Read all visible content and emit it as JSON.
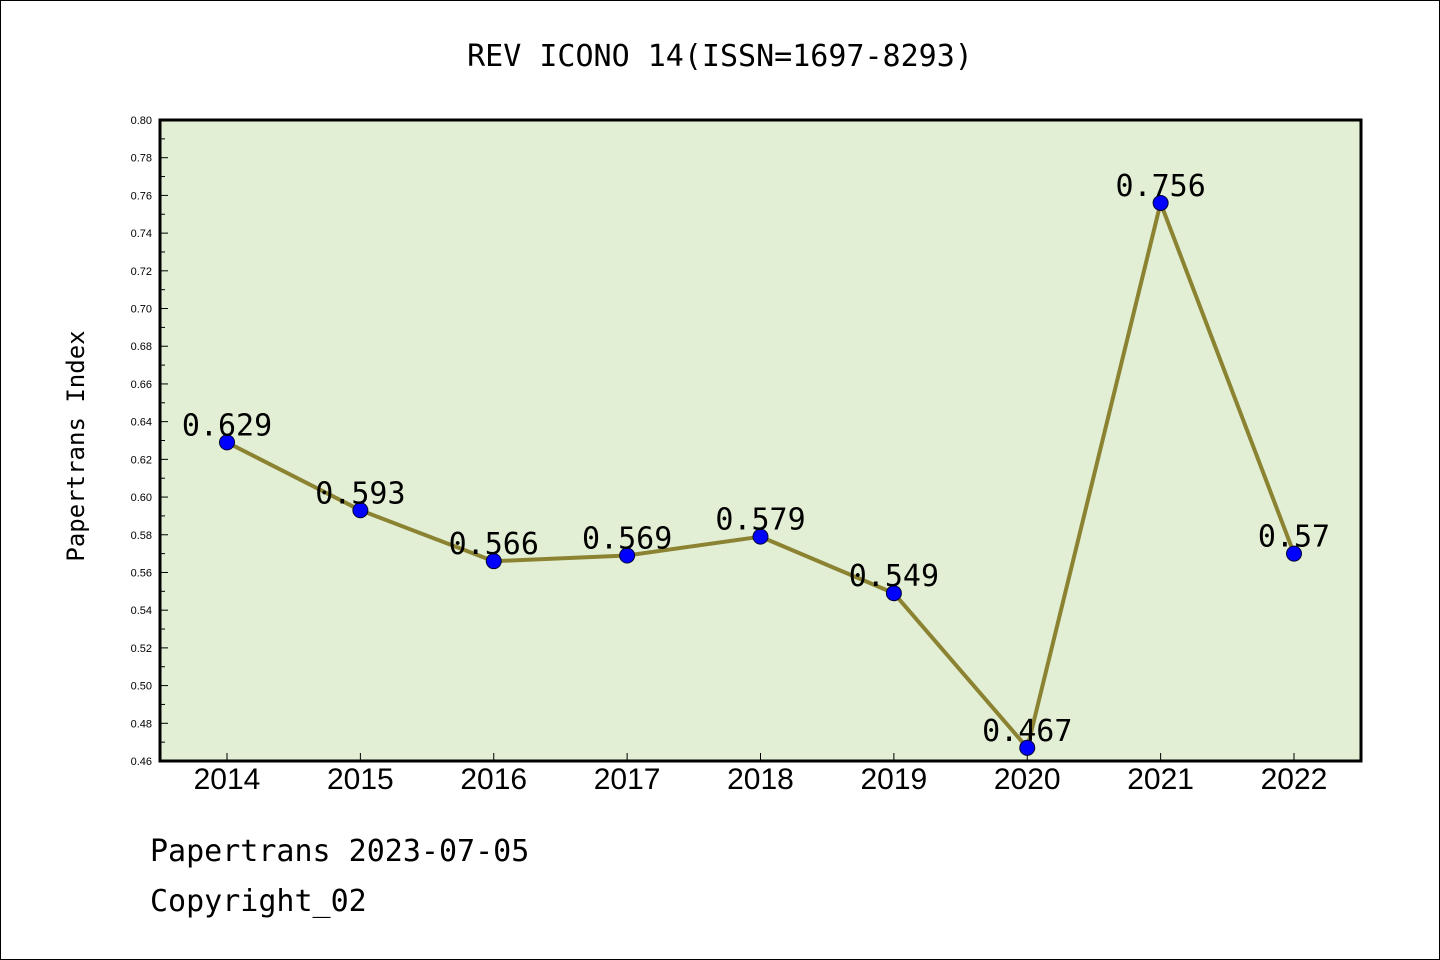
{
  "footer": {
    "date_line": "Papertrans 2023-07-05",
    "copyright": "Copyright_02"
  },
  "chart_data": {
    "type": "line",
    "title": "REV ICONO 14(ISSN=1697-8293)",
    "xlabel": "",
    "ylabel": "Papertrans Index",
    "categories": [
      "2014",
      "2015",
      "2016",
      "2017",
      "2018",
      "2019",
      "2020",
      "2021",
      "2022"
    ],
    "values": [
      0.629,
      0.593,
      0.566,
      0.569,
      0.579,
      0.549,
      0.467,
      0.756,
      0.57
    ],
    "data_labels": [
      "0.629",
      "0.593",
      "0.566",
      "0.569",
      "0.579",
      "0.549",
      "0.467",
      "0.756",
      "0.57"
    ],
    "ylim": [
      0.46,
      0.8
    ],
    "yticks": [
      "0.46",
      "0.48",
      "0.50",
      "0.52",
      "0.54",
      "0.56",
      "0.58",
      "0.60",
      "0.62",
      "0.64",
      "0.66",
      "0.68",
      "0.70",
      "0.72",
      "0.74",
      "0.76",
      "0.78",
      "0.80"
    ],
    "grid": false,
    "colors": {
      "line": "#8b8332",
      "marker": "#0000ff",
      "plot_background": "#e2efd4"
    }
  }
}
